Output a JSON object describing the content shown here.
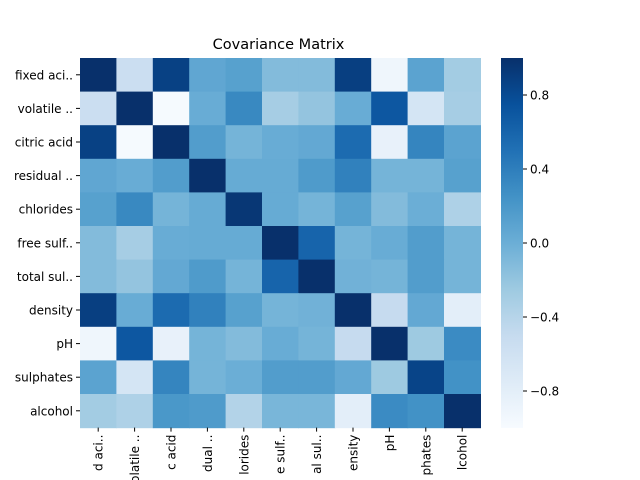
{
  "chart_data": {
    "type": "heatmap",
    "title": "Covariance Matrix",
    "row_labels": [
      "fixed aci..",
      "volatile ..",
      "citric acid",
      "residual ..",
      "chlorides",
      "free sulf..",
      "total sul..",
      "density",
      "pH",
      "sulphates",
      "alcohol"
    ],
    "col_labels": [
      "d aci..",
      "olatile ..",
      "c acid",
      "dual ..",
      "lorides",
      "e sulf..",
      "al sul..",
      "ensity",
      "pH",
      "phates",
      "lcohol"
    ],
    "values": [
      [
        1.0,
        -0.55,
        0.87,
        0.07,
        0.12,
        -0.12,
        -0.12,
        0.89,
        -0.92,
        0.1,
        -0.28
      ],
      [
        -0.55,
        1.0,
        -0.98,
        0.02,
        0.32,
        -0.3,
        -0.2,
        0.02,
        0.7,
        -0.65,
        -0.3
      ],
      [
        0.87,
        -0.98,
        1.0,
        0.15,
        -0.05,
        0.02,
        0.05,
        0.55,
        -0.85,
        0.35,
        0.1
      ],
      [
        0.07,
        0.02,
        0.15,
        1.0,
        0.03,
        0.03,
        0.17,
        0.38,
        -0.05,
        -0.05,
        0.12
      ],
      [
        0.12,
        0.32,
        -0.05,
        0.03,
        0.95,
        0.03,
        -0.05,
        0.12,
        -0.12,
        0.0,
        -0.35
      ],
      [
        -0.12,
        -0.3,
        0.02,
        0.03,
        0.03,
        1.0,
        0.6,
        -0.05,
        0.02,
        0.15,
        -0.05
      ],
      [
        -0.12,
        -0.2,
        0.05,
        0.17,
        -0.05,
        0.6,
        1.0,
        -0.03,
        -0.05,
        0.15,
        -0.05
      ],
      [
        0.89,
        0.02,
        0.55,
        0.38,
        0.12,
        -0.05,
        -0.03,
        1.0,
        -0.5,
        0.05,
        -0.8
      ],
      [
        -0.92,
        0.7,
        -0.85,
        -0.05,
        -0.12,
        0.02,
        -0.05,
        -0.5,
        1.0,
        -0.25,
        0.3
      ],
      [
        0.1,
        -0.65,
        0.35,
        -0.05,
        0.0,
        0.15,
        0.15,
        0.05,
        -0.25,
        0.85,
        0.25
      ],
      [
        -0.28,
        -0.35,
        0.2,
        0.17,
        -0.38,
        -0.07,
        -0.07,
        -0.8,
        0.3,
        0.25,
        1.0
      ]
    ],
    "colormap": "Blues",
    "vmin": -1.0,
    "vmax": 1.0,
    "colorbar_ticks": [
      0.8,
      0.4,
      0.0,
      -0.4,
      -0.8
    ],
    "colorbar_tick_labels": [
      "0.8",
      "0.4",
      "0.0",
      "−0.4",
      "−0.8"
    ]
  }
}
